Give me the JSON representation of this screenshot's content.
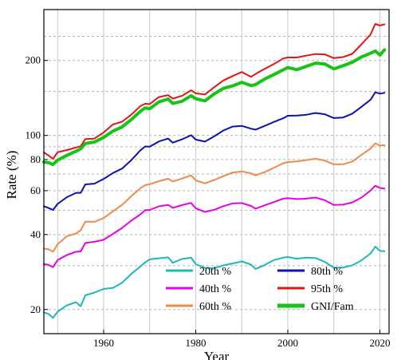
{
  "chart_data": {
    "type": "line",
    "title": "",
    "xlabel": "Year",
    "ylabel": "Rate (%)",
    "xlim": [
      1947,
      2022
    ],
    "ylim": [
      16,
      320
    ],
    "yscale": "log",
    "grid": true,
    "legend_placement": "bottom-right",
    "x_ticks": [
      {
        "value": 1960,
        "label": "1960"
      },
      {
        "value": 1980,
        "label": "1980"
      },
      {
        "value": 2000,
        "label": "2000"
      },
      {
        "value": 2020,
        "label": "2020"
      }
    ],
    "y_ticks": [
      {
        "value": 20,
        "label": "20"
      },
      {
        "value": 40,
        "label": "40"
      },
      {
        "value": 60,
        "label": "60"
      },
      {
        "value": 80,
        "label": "80"
      },
      {
        "value": 100,
        "label": "100"
      },
      {
        "value": 200,
        "label": "200"
      }
    ],
    "x_grid": [
      1950,
      1960,
      1970,
      1980,
      1990,
      2000,
      2010,
      2020
    ],
    "y_grid": [
      30,
      50,
      70,
      90,
      150,
      250
    ],
    "series": [
      {
        "name": "20th %",
        "color": "#1fb8b8",
        "width": 2,
        "x": [
          1947,
          1948,
          1949,
          1950,
          1952,
          1954,
          1955,
          1956,
          1958,
          1960,
          1962,
          1964,
          1966,
          1968,
          1969,
          1970,
          1972,
          1974,
          1975,
          1977,
          1979,
          1980,
          1982,
          1984,
          1986,
          1988,
          1990,
          1992,
          1993,
          1995,
          1997,
          1999,
          2000,
          2002,
          2004,
          2006,
          2008,
          2010,
          2012,
          2014,
          2016,
          2018,
          2019,
          2020,
          2021
        ],
        "y": [
          19.5,
          19.2,
          18.5,
          19.6,
          20.8,
          21.4,
          20.6,
          22.8,
          23.4,
          24.2,
          24.4,
          25.6,
          27.8,
          29.8,
          30.9,
          31.8,
          32.1,
          32.4,
          30.8,
          31.9,
          32.3,
          30.4,
          29.4,
          29.3,
          30.1,
          30.6,
          31.2,
          30.3,
          29.1,
          30.2,
          31.6,
          32.3,
          32.5,
          32.0,
          32.3,
          32.2,
          31.1,
          29.4,
          29.5,
          30.1,
          31.5,
          33.6,
          35.8,
          34.4,
          34.3
        ]
      },
      {
        "name": "40th %",
        "color": "#e800e8",
        "width": 2,
        "x": [
          1947,
          1948,
          1949,
          1950,
          1952,
          1954,
          1955,
          1956,
          1958,
          1960,
          1962,
          1964,
          1966,
          1968,
          1969,
          1970,
          1972,
          1974,
          1975,
          1977,
          1979,
          1980,
          1982,
          1984,
          1986,
          1988,
          1990,
          1992,
          1993,
          1995,
          1997,
          1999,
          2000,
          2002,
          2004,
          2006,
          2008,
          2010,
          2012,
          2014,
          2016,
          2018,
          2019,
          2020,
          2021
        ],
        "y": [
          30.5,
          30.2,
          29.6,
          31.6,
          33.1,
          34.1,
          34.2,
          37.0,
          37.4,
          38.1,
          40.2,
          42.5,
          45.5,
          48.2,
          50.1,
          50.2,
          51.9,
          52.6,
          51.2,
          52.5,
          53.6,
          51.0,
          49.3,
          50.3,
          52.0,
          53.3,
          53.5,
          52.1,
          50.8,
          52.4,
          54.0,
          55.7,
          56.0,
          55.5,
          55.7,
          56.3,
          55.0,
          52.6,
          52.7,
          53.8,
          56.3,
          60.1,
          62.8,
          61.5,
          61.2
        ]
      },
      {
        "name": "60th %",
        "color": "#f08a4b",
        "width": 2,
        "x": [
          1947,
          1948,
          1949,
          1950,
          1952,
          1954,
          1955,
          1956,
          1958,
          1960,
          1962,
          1964,
          1966,
          1968,
          1969,
          1970,
          1972,
          1974,
          1975,
          1977,
          1979,
          1980,
          1982,
          1984,
          1986,
          1988,
          1990,
          1992,
          1993,
          1995,
          1997,
          1999,
          2000,
          2002,
          2004,
          2006,
          2008,
          2010,
          2012,
          2014,
          2016,
          2018,
          2019,
          2020,
          2021
        ],
        "y": [
          35.1,
          34.9,
          34.1,
          36.6,
          39.4,
          40.4,
          41.6,
          45.1,
          45.0,
          46.6,
          49.6,
          52.6,
          57.0,
          61.4,
          63.1,
          63.7,
          65.5,
          67.0,
          65.3,
          67.1,
          69.1,
          66.0,
          64.2,
          66.2,
          68.6,
          70.9,
          71.7,
          70.4,
          69.1,
          71.3,
          74.2,
          77.3,
          78.1,
          78.6,
          79.6,
          80.7,
          79.2,
          76.5,
          76.6,
          78.5,
          83.6,
          88.6,
          93.0,
          91.0,
          91.5
        ]
      },
      {
        "name": "80th %",
        "color": "#0c12b0",
        "width": 2,
        "x": [
          1947,
          1948,
          1949,
          1950,
          1952,
          1954,
          1955,
          1956,
          1958,
          1960,
          1962,
          1964,
          1966,
          1968,
          1969,
          1970,
          1972,
          1974,
          1975,
          1977,
          1979,
          1980,
          1982,
          1984,
          1986,
          1988,
          1990,
          1992,
          1993,
          1995,
          1997,
          1999,
          2000,
          2002,
          2004,
          2006,
          2008,
          2010,
          2012,
          2014,
          2016,
          2018,
          2019,
          2020,
          2021
        ],
        "y": [
          52.0,
          51.1,
          50.2,
          53.1,
          56.5,
          58.8,
          58.8,
          63.6,
          64.0,
          66.9,
          70.6,
          73.6,
          79.6,
          87.2,
          90.3,
          90.1,
          94.6,
          97.1,
          93.5,
          96.4,
          100.2,
          96.2,
          94.4,
          99.1,
          104.6,
          108.5,
          109.2,
          106.4,
          105.5,
          109.2,
          113.3,
          117.1,
          119.9,
          120.1,
          121.0,
          123.1,
          121.6,
          117.4,
          118.0,
          122.3,
          130.3,
          139.2,
          149.0,
          147.1,
          148.2
        ]
      },
      {
        "name": "95th %",
        "color": "#e41414",
        "width": 2,
        "x": [
          1947,
          1948,
          1949,
          1950,
          1952,
          1954,
          1955,
          1956,
          1958,
          1960,
          1962,
          1964,
          1966,
          1968,
          1969,
          1970,
          1972,
          1974,
          1975,
          1977,
          1979,
          1980,
          1982,
          1984,
          1986,
          1988,
          1990,
          1992,
          1993,
          1995,
          1997,
          1999,
          2000,
          2002,
          2004,
          2006,
          2008,
          2010,
          2012,
          2014,
          2016,
          2018,
          2019,
          2020,
          2021
        ],
        "y": [
          85.5,
          83.1,
          80.5,
          85.6,
          87.3,
          89.4,
          90.5,
          96.7,
          97.1,
          102.8,
          110.7,
          113.5,
          121.1,
          131.2,
          134.0,
          133.6,
          142.5,
          145.1,
          140.5,
          144.1,
          151.8,
          147.6,
          145.9,
          156.1,
          166.2,
          173.1,
          179.7,
          171.8,
          176.5,
          185.0,
          193.6,
          203.5,
          205.6,
          205.6,
          209.1,
          212.1,
          211.6,
          204.3,
          206.3,
          212.5,
          232.2,
          254.5,
          280.3,
          276.1,
          279.1
        ]
      },
      {
        "name": "GNI/Fam",
        "color": "#16c416",
        "width": 4,
        "x": [
          1947,
          1948,
          1949,
          1950,
          1952,
          1954,
          1955,
          1956,
          1958,
          1960,
          1962,
          1964,
          1966,
          1968,
          1969,
          1970,
          1972,
          1974,
          1975,
          1977,
          1979,
          1980,
          1982,
          1984,
          1986,
          1988,
          1990,
          1992,
          1993,
          1995,
          1997,
          1999,
          2000,
          2002,
          2004,
          2006,
          2008,
          2010,
          2012,
          2014,
          2016,
          2018,
          2019,
          2020,
          2021
        ],
        "y": [
          78.2,
          77.8,
          76.4,
          79.6,
          83.1,
          86.4,
          88.3,
          92.8,
          94.1,
          98.2,
          104.0,
          108.2,
          115.8,
          125.0,
          128.9,
          128.0,
          136.3,
          140.0,
          134.4,
          137.1,
          144.3,
          140.3,
          137.6,
          146.8,
          154.5,
          158.0,
          163.4,
          158.4,
          160.1,
          168.5,
          175.6,
          183.3,
          187.3,
          183.6,
          189.2,
          195.0,
          193.6,
          185.0,
          190.3,
          196.7,
          206.5,
          213.7,
          218.2,
          210.3,
          220.4
        ]
      }
    ]
  }
}
